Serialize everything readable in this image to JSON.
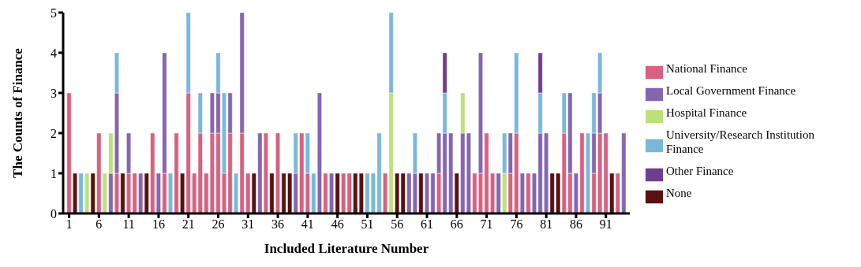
{
  "chart_data": {
    "type": "bar",
    "stacked": true,
    "xlabel": "Included Literature Number",
    "ylabel": "The Counts of Finance",
    "x": [
      1,
      2,
      3,
      4,
      5,
      6,
      7,
      8,
      9,
      10,
      11,
      12,
      13,
      14,
      15,
      16,
      17,
      18,
      19,
      20,
      21,
      22,
      23,
      24,
      25,
      26,
      27,
      28,
      29,
      30,
      31,
      32,
      33,
      34,
      35,
      36,
      37,
      38,
      39,
      40,
      41,
      42,
      43,
      44,
      45,
      46,
      47,
      48,
      49,
      50,
      51,
      52,
      53,
      54,
      55,
      56,
      57,
      58,
      59,
      60,
      61,
      62,
      63,
      64,
      65,
      66,
      67,
      68,
      69,
      70,
      71,
      72,
      73,
      74,
      75,
      76,
      77,
      78,
      79,
      80,
      81,
      82,
      83,
      84,
      85,
      86,
      87,
      88,
      89,
      90,
      91,
      92,
      93,
      94
    ],
    "xlim": [
      0,
      95
    ],
    "xticks": [
      1,
      6,
      11,
      16,
      21,
      26,
      31,
      36,
      41,
      46,
      51,
      56,
      61,
      66,
      71,
      76,
      81,
      86,
      91
    ],
    "ylim": [
      0,
      5
    ],
    "yticks": [
      0,
      1,
      2,
      3,
      4,
      5
    ],
    "grid": false,
    "legend": "right",
    "series": [
      {
        "name": "National Finance",
        "color": "#d9607f",
        "values": [
          3,
          null,
          null,
          null,
          null,
          2,
          null,
          null,
          1,
          null,
          1,
          1,
          null,
          null,
          2,
          null,
          1,
          null,
          2,
          null,
          3,
          1,
          2,
          1,
          2,
          2,
          1,
          2,
          null,
          2,
          1,
          null,
          null,
          2,
          null,
          2,
          null,
          null,
          null,
          2,
          1,
          null,
          null,
          1,
          null,
          null,
          1,
          1,
          null,
          null,
          null,
          null,
          null,
          1,
          null,
          null,
          null,
          null,
          null,
          null,
          null,
          null,
          1,
          null,
          null,
          null,
          null,
          null,
          1,
          1,
          2,
          1,
          null,
          null,
          1,
          2,
          null,
          1,
          null,
          null,
          null,
          null,
          null,
          2,
          1,
          null,
          2,
          null,
          1,
          2,
          2,
          null,
          1,
          null
        ]
      },
      {
        "name": "Local Government Finance",
        "color": "#8466b0",
        "values": [
          null,
          null,
          null,
          null,
          null,
          null,
          null,
          1,
          2,
          null,
          1,
          null,
          1,
          null,
          null,
          1,
          3,
          null,
          null,
          null,
          null,
          null,
          null,
          null,
          1,
          1,
          null,
          1,
          null,
          3,
          null,
          null,
          2,
          null,
          null,
          null,
          null,
          null,
          1,
          null,
          null,
          null,
          3,
          null,
          1,
          null,
          null,
          null,
          null,
          null,
          null,
          null,
          null,
          null,
          null,
          null,
          null,
          1,
          1,
          null,
          1,
          1,
          1,
          2,
          2,
          null,
          2,
          2,
          null,
          3,
          null,
          null,
          1,
          null,
          1,
          null,
          1,
          null,
          1,
          2,
          2,
          null,
          null,
          null,
          2,
          1,
          null,
          null,
          1,
          1,
          null,
          null,
          null,
          2
        ]
      },
      {
        "name": "Hospital Finance",
        "color": "#bde07a",
        "values": [
          null,
          null,
          null,
          1,
          null,
          null,
          1,
          1,
          null,
          null,
          null,
          null,
          null,
          null,
          null,
          null,
          null,
          null,
          null,
          null,
          null,
          null,
          null,
          null,
          null,
          null,
          null,
          null,
          null,
          null,
          null,
          null,
          null,
          null,
          null,
          null,
          null,
          null,
          null,
          null,
          null,
          null,
          null,
          null,
          null,
          null,
          null,
          null,
          null,
          null,
          null,
          null,
          null,
          null,
          3,
          null,
          null,
          null,
          null,
          null,
          null,
          null,
          null,
          null,
          null,
          null,
          1,
          null,
          null,
          null,
          null,
          null,
          null,
          1,
          null,
          null,
          null,
          null,
          null,
          null,
          null,
          null,
          null,
          null,
          null,
          null,
          null,
          null,
          null,
          null,
          null,
          null,
          null,
          null
        ]
      },
      {
        "name": "University/Research Institution Finance",
        "color": "#7ab8d9",
        "values": [
          null,
          null,
          1,
          null,
          null,
          null,
          null,
          null,
          1,
          null,
          null,
          null,
          null,
          null,
          null,
          null,
          null,
          1,
          null,
          null,
          2,
          null,
          1,
          null,
          null,
          1,
          2,
          null,
          1,
          null,
          null,
          null,
          null,
          null,
          null,
          null,
          null,
          null,
          1,
          null,
          1,
          1,
          null,
          null,
          null,
          null,
          null,
          null,
          null,
          null,
          1,
          1,
          2,
          null,
          2,
          null,
          null,
          null,
          1,
          null,
          null,
          null,
          null,
          1,
          null,
          null,
          null,
          null,
          null,
          null,
          null,
          null,
          null,
          1,
          null,
          2,
          null,
          null,
          null,
          1,
          null,
          null,
          null,
          1,
          null,
          null,
          null,
          2,
          1,
          1,
          null,
          null,
          null,
          null
        ]
      },
      {
        "name": "Other Finance",
        "color": "#6f3f8f",
        "values": [
          null,
          null,
          null,
          null,
          null,
          null,
          null,
          null,
          null,
          null,
          null,
          null,
          null,
          null,
          null,
          null,
          null,
          null,
          null,
          null,
          null,
          null,
          null,
          null,
          null,
          null,
          null,
          null,
          null,
          null,
          null,
          null,
          null,
          null,
          null,
          null,
          null,
          null,
          null,
          null,
          null,
          null,
          null,
          null,
          null,
          null,
          null,
          null,
          null,
          null,
          null,
          null,
          null,
          null,
          null,
          null,
          null,
          null,
          null,
          null,
          null,
          null,
          null,
          1,
          null,
          null,
          null,
          null,
          null,
          null,
          null,
          null,
          null,
          null,
          null,
          null,
          null,
          null,
          null,
          1,
          null,
          null,
          null,
          null,
          null,
          null,
          null,
          null,
          null,
          null,
          null,
          null,
          null,
          null
        ]
      },
      {
        "name": "None",
        "color": "#5a1010",
        "values": [
          null,
          1,
          null,
          null,
          1,
          null,
          null,
          null,
          null,
          1,
          null,
          null,
          null,
          1,
          null,
          null,
          null,
          null,
          null,
          1,
          null,
          null,
          null,
          null,
          null,
          null,
          null,
          null,
          null,
          null,
          null,
          1,
          null,
          null,
          1,
          null,
          1,
          1,
          null,
          null,
          null,
          null,
          null,
          null,
          null,
          1,
          null,
          null,
          1,
          1,
          null,
          null,
          null,
          null,
          null,
          1,
          1,
          null,
          null,
          1,
          null,
          null,
          null,
          null,
          null,
          1,
          null,
          null,
          null,
          null,
          null,
          null,
          null,
          null,
          null,
          null,
          null,
          null,
          null,
          null,
          null,
          1,
          1,
          null,
          null,
          null,
          null,
          null,
          null,
          null,
          null,
          1,
          null,
          null
        ]
      }
    ]
  }
}
